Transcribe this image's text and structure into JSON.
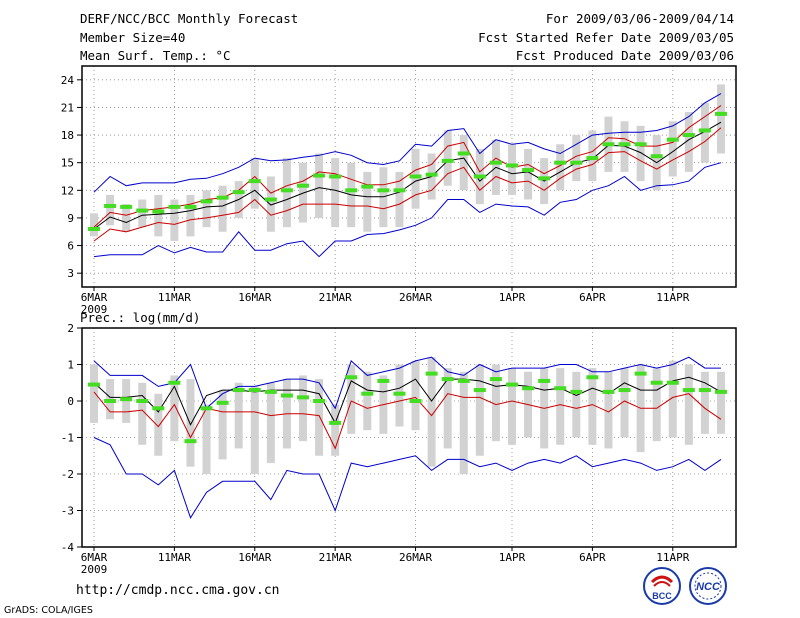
{
  "header": {
    "title": "DERF/NCC/BCC Monthly Forecast",
    "member_size": "Member Size=40",
    "variable": "Mean Surf. Temp.: °C",
    "period": "For 2009/03/06-2009/04/14",
    "fcst_started": "Fcst Started Refer Date 2009/03/05",
    "fcst_produced": "Fcst Produced Date 2009/03/06"
  },
  "panel2_label": "Prec.: log(mm/d)",
  "footer": {
    "url": "http://cmdp.ncc.cma.gov.cn",
    "credit": "GrADS: COLA/IGES",
    "logo_bcc": "BCC",
    "logo_ncc": "NCC"
  },
  "colors": {
    "max_min": "#0000cc",
    "ensemble_mean": "#000000",
    "spread": "#cc0000",
    "box": "#d2d2d2",
    "marker": "#44dd22"
  },
  "chart_data": [
    {
      "type": "line",
      "name": "temperature",
      "title": "Mean Surf. Temp.: °C",
      "ylim": [
        1.5,
        25.5
      ],
      "yticks": [
        3,
        6,
        9,
        12,
        15,
        18,
        21,
        24
      ],
      "x_tick_labels": [
        "6MAR",
        "11MAR",
        "16MAR",
        "21MAR",
        "26MAR",
        "1APR",
        "6APR",
        "11APR"
      ],
      "x_tick_days": [
        0,
        5,
        10,
        15,
        20,
        26,
        31,
        36
      ],
      "x_sublabel": "2009",
      "grid": true,
      "days": 40,
      "series": [
        {
          "name": "max",
          "values": [
            11.8,
            13.5,
            12.5,
            12.8,
            12.8,
            12.8,
            13.2,
            13.3,
            13.8,
            14.5,
            15.5,
            15.2,
            15.3,
            15.6,
            15.8,
            16.2,
            15.8,
            15.0,
            14.8,
            15.2,
            17.0,
            16.8,
            18.5,
            18.7,
            16.0,
            17.5,
            17.0,
            17.2,
            16.5,
            16.0,
            17.0,
            18.0,
            18.2,
            18.3,
            18.3,
            18.5,
            19.0,
            20.0,
            21.5,
            22.5
          ]
        },
        {
          "name": "upper",
          "values": [
            8.0,
            9.6,
            9.3,
            9.8,
            10.0,
            10.2,
            10.5,
            11.0,
            11.2,
            12.0,
            13.5,
            11.7,
            12.5,
            13.0,
            14.0,
            13.8,
            13.2,
            12.6,
            12.6,
            13.0,
            14.2,
            14.8,
            16.8,
            17.2,
            14.0,
            15.5,
            14.5,
            14.8,
            13.8,
            14.7,
            15.7,
            16.2,
            17.7,
            17.6,
            16.8,
            16.8,
            17.2,
            18.8,
            20.0,
            21.2
          ]
        },
        {
          "name": "mean",
          "values": [
            7.8,
            9.1,
            8.5,
            9.3,
            9.4,
            9.5,
            9.8,
            10.2,
            10.3,
            11.0,
            12.0,
            10.4,
            11.0,
            11.7,
            12.3,
            12.0,
            11.5,
            11.3,
            11.3,
            11.8,
            13.0,
            13.5,
            15.2,
            15.5,
            13.0,
            14.5,
            13.8,
            14.0,
            13.0,
            14.0,
            15.0,
            15.4,
            16.9,
            16.8,
            16.1,
            15.0,
            16.2,
            17.5,
            18.4,
            19.4
          ]
        },
        {
          "name": "lower",
          "values": [
            6.5,
            7.8,
            7.5,
            8.0,
            8.5,
            8.3,
            8.8,
            9.0,
            9.3,
            9.6,
            11.0,
            9.3,
            9.8,
            10.5,
            10.5,
            10.5,
            10.3,
            10.3,
            10.0,
            10.5,
            11.5,
            12.0,
            13.8,
            14.5,
            12.0,
            13.5,
            12.8,
            13.0,
            12.0,
            13.3,
            14.3,
            14.8,
            16.1,
            16.2,
            15.2,
            14.3,
            15.3,
            16.2,
            17.3,
            18.8
          ]
        },
        {
          "name": "min",
          "values": [
            4.8,
            5.0,
            5.0,
            5.0,
            6.0,
            5.2,
            5.8,
            5.3,
            5.3,
            7.5,
            5.5,
            5.5,
            6.2,
            6.5,
            4.8,
            6.5,
            6.5,
            7.2,
            7.3,
            7.7,
            8.2,
            9.0,
            11.0,
            11.0,
            9.6,
            10.5,
            10.3,
            10.2,
            9.3,
            10.7,
            11.0,
            12.0,
            12.5,
            13.5,
            12.0,
            12.5,
            12.6,
            13.0,
            14.5,
            15.0
          ]
        },
        {
          "name": "marker",
          "values": [
            7.8,
            10.3,
            10.2,
            9.8,
            9.7,
            10.2,
            10.2,
            10.8,
            11.2,
            11.8,
            13.0,
            11.0,
            12.0,
            12.5,
            13.6,
            13.5,
            12.0,
            12.4,
            12.0,
            12.0,
            13.5,
            13.7,
            15.2,
            16.0,
            13.5,
            15.0,
            14.7,
            14.2,
            13.3,
            15.0,
            15.0,
            15.5,
            17.0,
            17.0,
            17.0,
            15.7,
            17.5,
            18.0,
            18.5,
            20.3
          ]
        }
      ],
      "box_ranges": [
        [
          7.0,
          9.5
        ],
        [
          8.2,
          11.5
        ],
        [
          7.5,
          10.5
        ],
        [
          8.0,
          11.0
        ],
        [
          7.0,
          11.5
        ],
        [
          6.5,
          11.0
        ],
        [
          7.0,
          11.5
        ],
        [
          8.0,
          12.0
        ],
        [
          7.5,
          12.5
        ],
        [
          9.0,
          13.0
        ],
        [
          10.0,
          15.5
        ],
        [
          7.5,
          13.5
        ],
        [
          8.0,
          15.5
        ],
        [
          8.5,
          15.0
        ],
        [
          9.0,
          16.0
        ],
        [
          8.0,
          15.5
        ],
        [
          8.0,
          15.0
        ],
        [
          7.5,
          14.0
        ],
        [
          8.0,
          14.5
        ],
        [
          8.0,
          14.0
        ],
        [
          10.0,
          16.5
        ],
        [
          11.0,
          16.0
        ],
        [
          12.5,
          18.5
        ],
        [
          12.0,
          18.0
        ],
        [
          10.5,
          16.5
        ],
        [
          11.5,
          17.5
        ],
        [
          11.5,
          17.0
        ],
        [
          11.0,
          16.5
        ],
        [
          10.5,
          15.5
        ],
        [
          12.0,
          17.0
        ],
        [
          13.0,
          18.0
        ],
        [
          13.0,
          18.5
        ],
        [
          14.0,
          20.0
        ],
        [
          14.0,
          19.5
        ],
        [
          13.0,
          19.0
        ],
        [
          12.0,
          18.0
        ],
        [
          13.5,
          19.5
        ],
        [
          14.0,
          20.5
        ],
        [
          15.0,
          21.5
        ],
        [
          16.0,
          23.5
        ]
      ]
    },
    {
      "type": "line",
      "name": "precipitation",
      "title": "Prec.: log(mm/d)",
      "ylim": [
        -4,
        2
      ],
      "yticks": [
        -4,
        -3,
        -2,
        -1,
        0,
        1,
        2
      ],
      "x_tick_labels": [
        "6MAR",
        "11MAR",
        "16MAR",
        "21MAR",
        "26MAR",
        "1APR",
        "6APR",
        "11APR"
      ],
      "x_tick_days": [
        0,
        5,
        10,
        15,
        20,
        26,
        31,
        36
      ],
      "x_sublabel": "2009",
      "grid": true,
      "days": 40,
      "series": [
        {
          "name": "max",
          "values": [
            1.1,
            0.7,
            0.7,
            0.7,
            0.4,
            0.5,
            1.0,
            -0.2,
            0.2,
            0.4,
            0.4,
            0.5,
            0.6,
            0.6,
            0.5,
            -0.2,
            1.1,
            0.7,
            0.8,
            0.9,
            1.1,
            1.2,
            0.8,
            0.7,
            1.0,
            0.8,
            0.9,
            0.9,
            0.9,
            1.0,
            1.0,
            0.8,
            0.8,
            0.9,
            1.0,
            0.9,
            1.0,
            1.2,
            0.9,
            0.9
          ]
        },
        {
          "name": "mean",
          "values": [
            0.5,
            0.1,
            0.1,
            0.15,
            -0.3,
            0.4,
            -0.65,
            0.15,
            0.3,
            0.3,
            0.25,
            0.3,
            0.3,
            0.3,
            0.2,
            -0.6,
            0.55,
            0.3,
            0.25,
            0.35,
            0.6,
            0.0,
            0.6,
            0.6,
            0.55,
            0.4,
            0.45,
            0.4,
            0.3,
            0.35,
            0.15,
            0.35,
            0.2,
            0.5,
            0.3,
            0.3,
            0.55,
            0.65,
            0.5,
            0.25
          ]
        },
        {
          "name": "lower",
          "values": [
            0.25,
            -0.3,
            -0.3,
            -0.25,
            -0.7,
            -0.1,
            -1.0,
            -0.2,
            -0.3,
            -0.3,
            -0.3,
            -0.4,
            -0.35,
            -0.35,
            -0.4,
            -1.3,
            0.0,
            -0.2,
            -0.1,
            0.0,
            0.1,
            -0.4,
            0.2,
            0.1,
            0.1,
            -0.1,
            0.0,
            -0.1,
            -0.2,
            -0.1,
            -0.2,
            -0.1,
            -0.3,
            0.0,
            -0.2,
            -0.2,
            0.1,
            0.2,
            -0.2,
            -0.5
          ]
        },
        {
          "name": "min",
          "values": [
            -1.0,
            -1.2,
            -2.0,
            -2.0,
            -2.3,
            -1.9,
            -3.2,
            -2.5,
            -2.2,
            -2.2,
            -2.2,
            -2.7,
            -1.9,
            -2.0,
            -2.0,
            -3.0,
            -1.7,
            -1.8,
            -1.7,
            -1.6,
            -1.5,
            -1.9,
            -1.6,
            -1.6,
            -1.8,
            -1.7,
            -1.9,
            -1.7,
            -1.6,
            -1.7,
            -1.5,
            -1.8,
            -1.7,
            -1.6,
            -1.7,
            -1.9,
            -1.8,
            -1.6,
            -1.9,
            -1.6
          ]
        },
        {
          "name": "marker",
          "values": [
            0.45,
            0.0,
            0.05,
            0.0,
            -0.2,
            0.5,
            -1.1,
            -0.2,
            -0.05,
            0.3,
            0.3,
            0.25,
            0.15,
            0.1,
            0.0,
            -0.6,
            0.65,
            0.2,
            0.55,
            0.2,
            0.0,
            0.75,
            0.6,
            0.55,
            0.3,
            0.6,
            0.45,
            0.35,
            0.55,
            0.35,
            0.25,
            0.65,
            0.25,
            0.3,
            0.75,
            0.5,
            0.5,
            0.3,
            0.3,
            0.25
          ]
        }
      ],
      "box_ranges": [
        [
          -0.6,
          1.0
        ],
        [
          -0.5,
          0.6
        ],
        [
          -0.6,
          0.6
        ],
        [
          -1.2,
          0.5
        ],
        [
          -1.5,
          0.2
        ],
        [
          -1.1,
          0.7
        ],
        [
          -1.8,
          0.6
        ],
        [
          -2.0,
          -0.1
        ],
        [
          -1.6,
          0.3
        ],
        [
          -1.3,
          0.5
        ],
        [
          -2.0,
          0.4
        ],
        [
          -1.7,
          0.5
        ],
        [
          -1.3,
          0.6
        ],
        [
          -1.1,
          0.7
        ],
        [
          -1.5,
          0.6
        ],
        [
          -1.5,
          -0.1
        ],
        [
          -0.9,
          1.0
        ],
        [
          -0.8,
          0.8
        ],
        [
          -0.9,
          0.7
        ],
        [
          -0.7,
          1.0
        ],
        [
          -0.8,
          1.1
        ],
        [
          -1.8,
          1.2
        ],
        [
          -1.3,
          0.9
        ],
        [
          -2.0,
          0.8
        ],
        [
          -1.5,
          1.0
        ],
        [
          -1.1,
          1.0
        ],
        [
          -1.2,
          0.9
        ],
        [
          -1.0,
          0.8
        ],
        [
          -1.3,
          0.9
        ],
        [
          -1.2,
          0.9
        ],
        [
          -1.0,
          0.8
        ],
        [
          -1.2,
          0.9
        ],
        [
          -1.3,
          0.8
        ],
        [
          -1.0,
          0.9
        ],
        [
          -1.4,
          1.0
        ],
        [
          -1.1,
          0.9
        ],
        [
          -1.0,
          1.1
        ],
        [
          -1.2,
          1.0
        ],
        [
          -0.9,
          0.8
        ],
        [
          -0.9,
          0.8
        ]
      ]
    }
  ]
}
